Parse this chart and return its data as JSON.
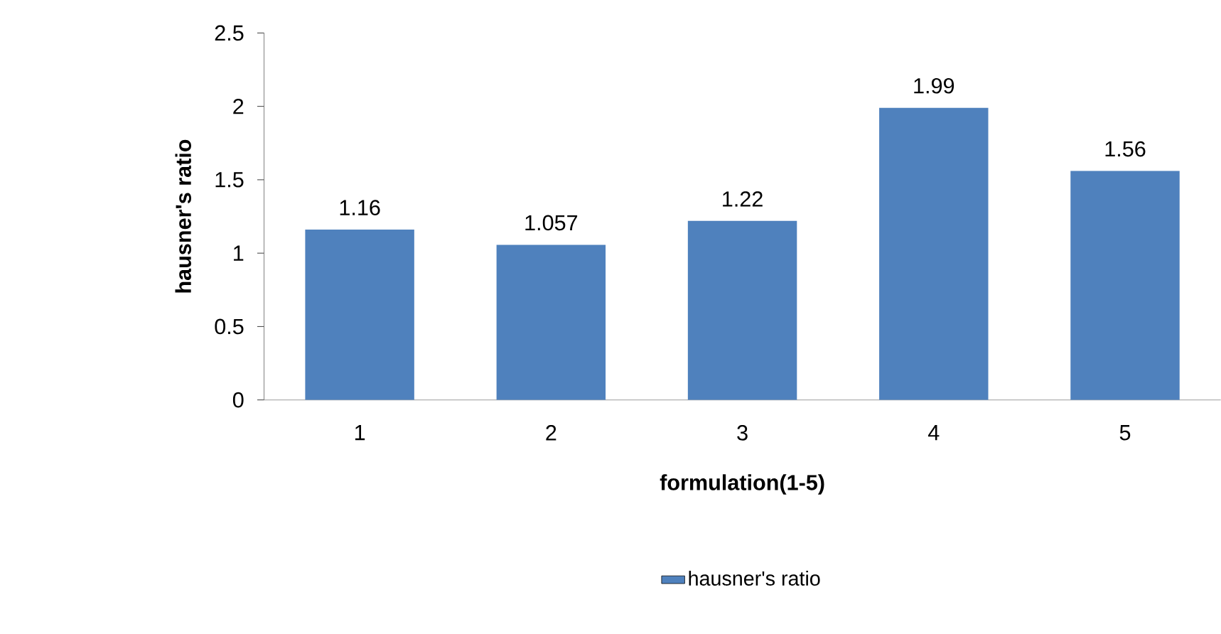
{
  "chart_data": {
    "type": "bar",
    "xlabel": "formulation(1-5)",
    "ylabel": "hausner's ratio",
    "categories": [
      "1",
      "2",
      "3",
      "4",
      "5"
    ],
    "series": [
      {
        "name": "hausner's ratio",
        "color": "#4f81bd",
        "values": [
          1.16,
          1.057,
          1.22,
          1.99,
          1.56
        ]
      }
    ],
    "ylim": [
      0,
      2.5
    ],
    "yticks": [
      0,
      0.5,
      1,
      1.5,
      2,
      2.5
    ],
    "data_labels": true,
    "legend": "bottom",
    "grid": false
  }
}
